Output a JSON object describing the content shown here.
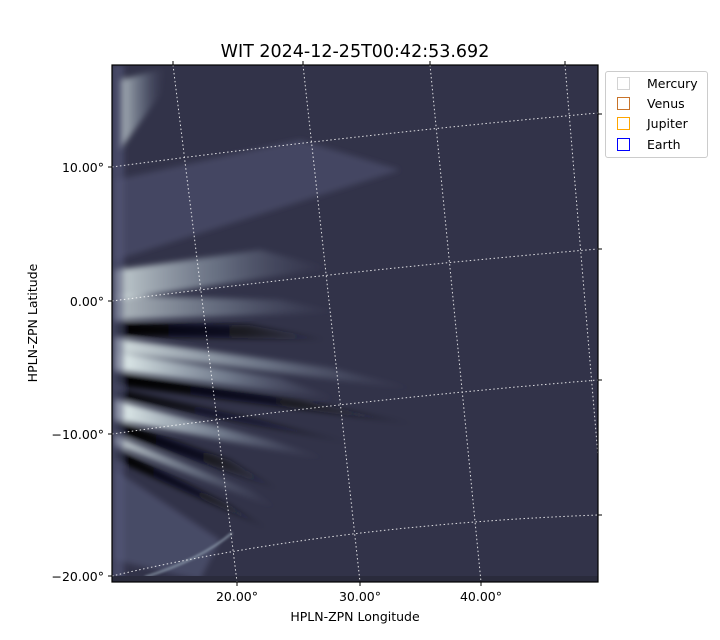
{
  "chart_data": {
    "type": "heatmap",
    "title": "WIT 2024-12-25T00:42:53.692",
    "xlabel": "HPLN-ZPN Longitude",
    "ylabel": "HPLN-ZPN Latitude",
    "x_ticks": [
      "20.00°",
      "30.00°",
      "40.00°"
    ],
    "y_ticks": [
      "10.00°",
      "0.00°",
      "−10.00°",
      "−20.00°"
    ],
    "colormap": "bone",
    "grid": "dotted white coordinate grid",
    "legend": {
      "placement": "outside-top-right",
      "entries": [
        {
          "label": "Mercury",
          "color": "#d3d3d3"
        },
        {
          "label": "Venus",
          "color": "#c8742a"
        },
        {
          "label": "Jupiter",
          "color": "#ffa500"
        },
        {
          "label": "Earth",
          "color": "#0000ff"
        }
      ]
    }
  }
}
